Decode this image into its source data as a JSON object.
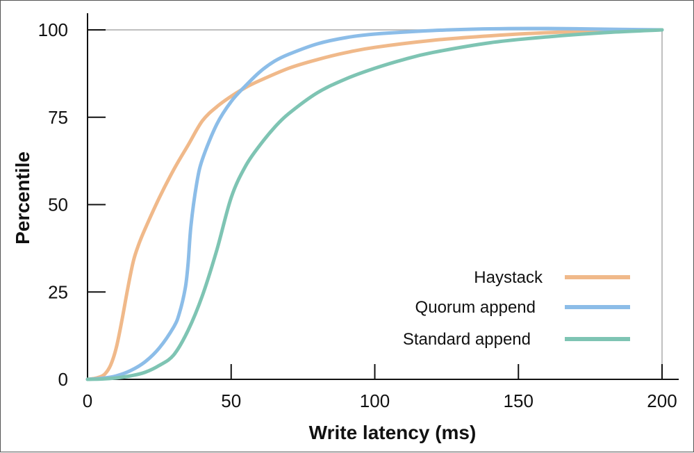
{
  "chart_data": {
    "type": "line",
    "xlabel": "Write latency (ms)",
    "ylabel": "Percentile",
    "xlim": [
      0,
      200
    ],
    "ylim": [
      0,
      100
    ],
    "x_ticks": [
      0,
      50,
      100,
      150,
      200
    ],
    "y_ticks": [
      0,
      25,
      50,
      75,
      100
    ],
    "grid": false,
    "legend_position": "bottom-right",
    "series": [
      {
        "name": "Haystack",
        "color": "#f0b98a",
        "x": [
          0,
          2,
          4,
          6,
          8,
          10,
          12,
          14,
          16,
          18,
          20,
          25,
          30,
          35,
          40,
          45,
          50,
          55,
          60,
          70,
          80,
          90,
          100,
          120,
          140,
          160,
          180,
          200
        ],
        "y": [
          0,
          0.2,
          0.6,
          1.5,
          4,
          9,
          17,
          26,
          34,
          39,
          43,
          52,
          60,
          67,
          74,
          78,
          81,
          83.5,
          85.5,
          89,
          91.5,
          93.5,
          95,
          97,
          98.3,
          99.2,
          99.7,
          100
        ]
      },
      {
        "name": "Quorum append",
        "color": "#8cbde8",
        "x": [
          0,
          5,
          10,
          15,
          20,
          25,
          30,
          32,
          34,
          35,
          36,
          38,
          40,
          45,
          50,
          55,
          60,
          65,
          70,
          80,
          90,
          100,
          120,
          140,
          160,
          180,
          200
        ],
        "y": [
          0,
          0.3,
          1,
          2.5,
          5,
          9,
          15,
          19,
          26,
          33,
          44,
          56,
          63,
          73,
          79.5,
          84,
          88,
          91,
          93,
          96,
          97.8,
          98.8,
          99.8,
          100.3,
          100.4,
          100.2,
          100
        ]
      },
      {
        "name": "Standard append",
        "color": "#7ec4b3",
        "x": [
          0,
          5,
          10,
          15,
          20,
          25,
          30,
          35,
          40,
          45,
          50,
          55,
          60,
          65,
          70,
          80,
          90,
          100,
          110,
          120,
          140,
          160,
          180,
          200
        ],
        "y": [
          0,
          0.1,
          0.4,
          1,
          2,
          4,
          7,
          14,
          24,
          37,
          52,
          61,
          67,
          72,
          76,
          82,
          86,
          89,
          91.5,
          93.5,
          96.3,
          98,
          99.2,
          100
        ]
      }
    ]
  }
}
